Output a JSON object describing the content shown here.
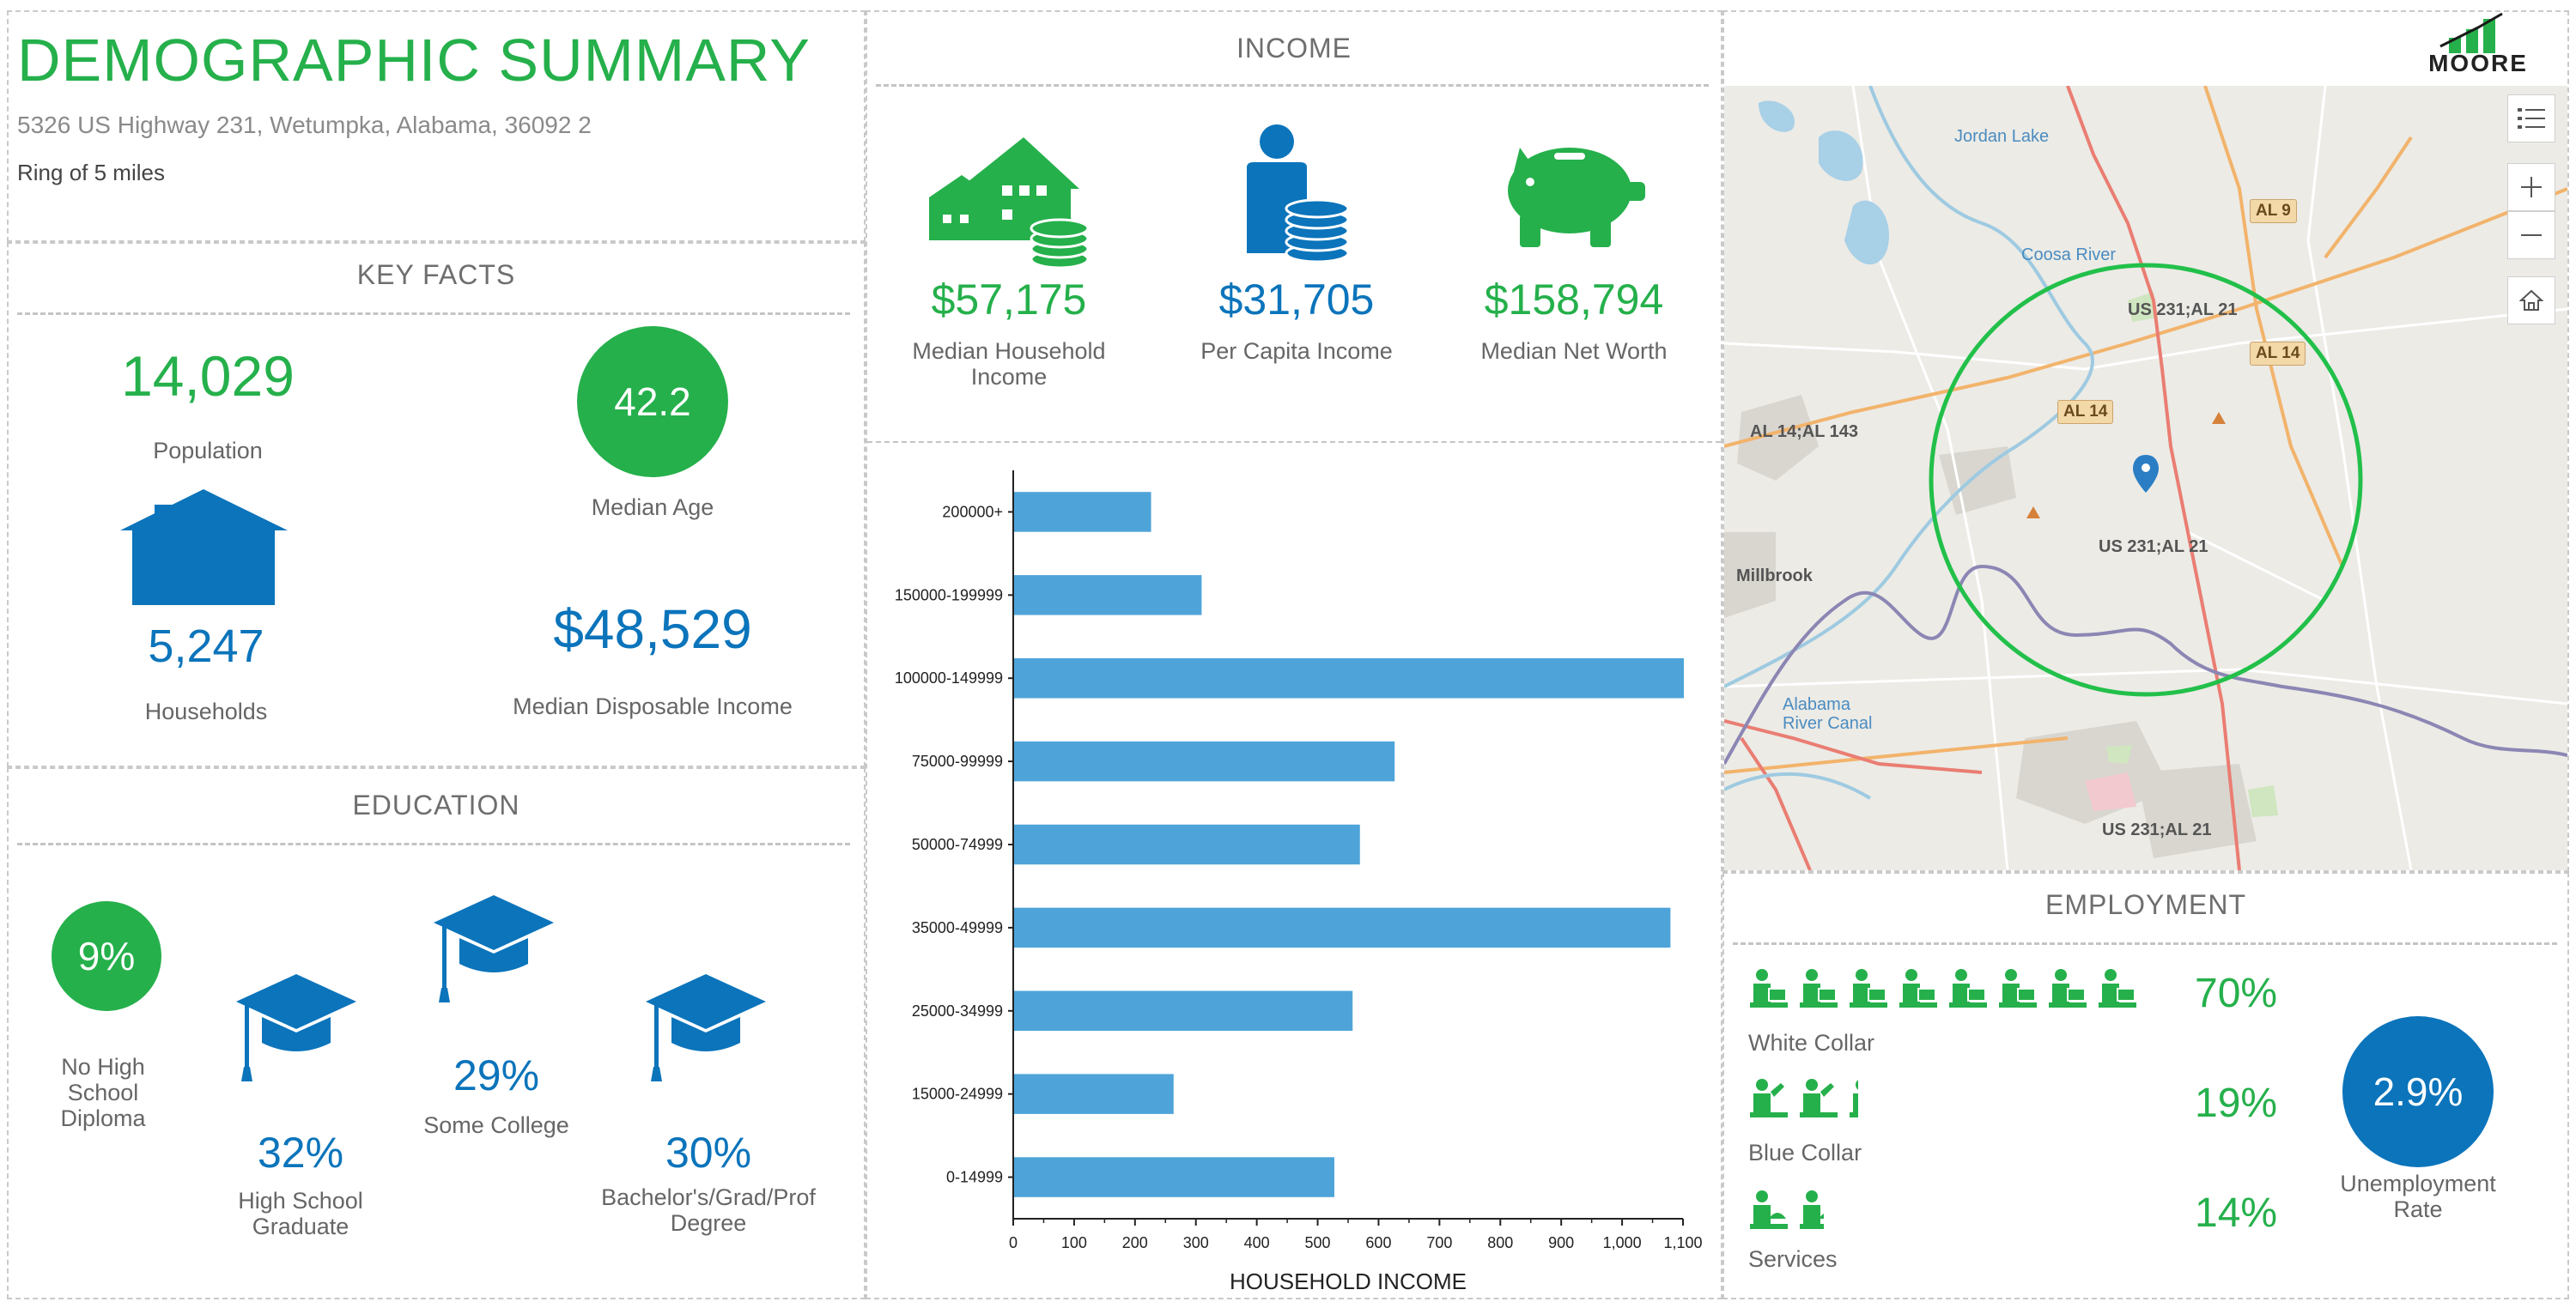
{
  "header": {
    "title": "DEMOGRAPHIC SUMMARY",
    "address": "5326 US Highway 231, Wetumpka, Alabama, 36092 2",
    "ring": "Ring of 5 miles"
  },
  "key_facts": {
    "title": "KEY FACTS",
    "population": {
      "value": "14,029",
      "label": "Population"
    },
    "median_age": {
      "value": "42.2",
      "label": "Median Age"
    },
    "households": {
      "value": "5,247",
      "label": "Households"
    },
    "median_disposable_income": {
      "value": "$48,529",
      "label": "Median Disposable Income"
    }
  },
  "education": {
    "title": "EDUCATION",
    "no_hs": {
      "value": "9%",
      "label_lines": [
        "No High",
        "School",
        "Diploma"
      ]
    },
    "hs_grad": {
      "value": "32%",
      "label_lines": [
        "High School",
        "Graduate"
      ]
    },
    "some_college": {
      "value": "29%",
      "label": "Some College"
    },
    "bachelors": {
      "value": "30%",
      "label_lines": [
        "Bachelor's/Grad/Prof",
        "Degree"
      ]
    }
  },
  "income": {
    "title": "INCOME",
    "median_household": {
      "value": "$57,175",
      "label_lines": [
        "Median Household",
        "Income"
      ]
    },
    "per_capita": {
      "value": "$31,705",
      "label": "Per Capita Income"
    },
    "median_net_worth": {
      "value": "$158,794",
      "label": "Median Net Worth"
    }
  },
  "chart_data": {
    "type": "bar",
    "orientation": "horizontal",
    "categories": [
      "200000+",
      "150000-199999",
      "100000-149999",
      "75000-99999",
      "50000-74999",
      "35000-49999",
      "25000-34999",
      "15000-24999",
      "0-14999"
    ],
    "values": [
      225,
      308,
      1100,
      625,
      568,
      1078,
      556,
      262,
      526
    ],
    "xlabel": "HOUSEHOLD INCOME",
    "xlim": [
      0,
      1100
    ],
    "xticks": [
      "0",
      "100",
      "200",
      "300",
      "400",
      "500",
      "600",
      "700",
      "800",
      "900",
      "1,000",
      "1,100"
    ],
    "bar_color": "#4ea4d9"
  },
  "map": {
    "logo_text": "MOORE",
    "labels": {
      "jordan_lake": "Jordan Lake",
      "coosa_river": "Coosa River",
      "al9": "AL 9",
      "us231_al21_top": "US 231;AL 21",
      "al14_right": "AL 14",
      "al14_left": "AL 14",
      "al14_al143": "AL 14;AL 143",
      "millbrook": "Millbrook",
      "us231_al21_mid": "US 231;AL 21",
      "alabama_river_canal_1": "Alabama",
      "alabama_river_canal_2": "River Canal",
      "us231_al21_bottom": "US 231;AL 21"
    },
    "ring_color": "#22c04a"
  },
  "employment": {
    "title": "EMPLOYMENT",
    "white_collar": {
      "value": "70%",
      "label": "White Collar"
    },
    "blue_collar": {
      "value": "19%",
      "label": "Blue Collar"
    },
    "services": {
      "value": "14%",
      "label": "Services"
    },
    "unemployment": {
      "value": "2.9%",
      "label_lines": [
        "Unemployment",
        "Rate"
      ]
    }
  },
  "colors": {
    "green": "#25b04b",
    "blue": "#0b74bb",
    "bar": "#4ea4d9"
  }
}
